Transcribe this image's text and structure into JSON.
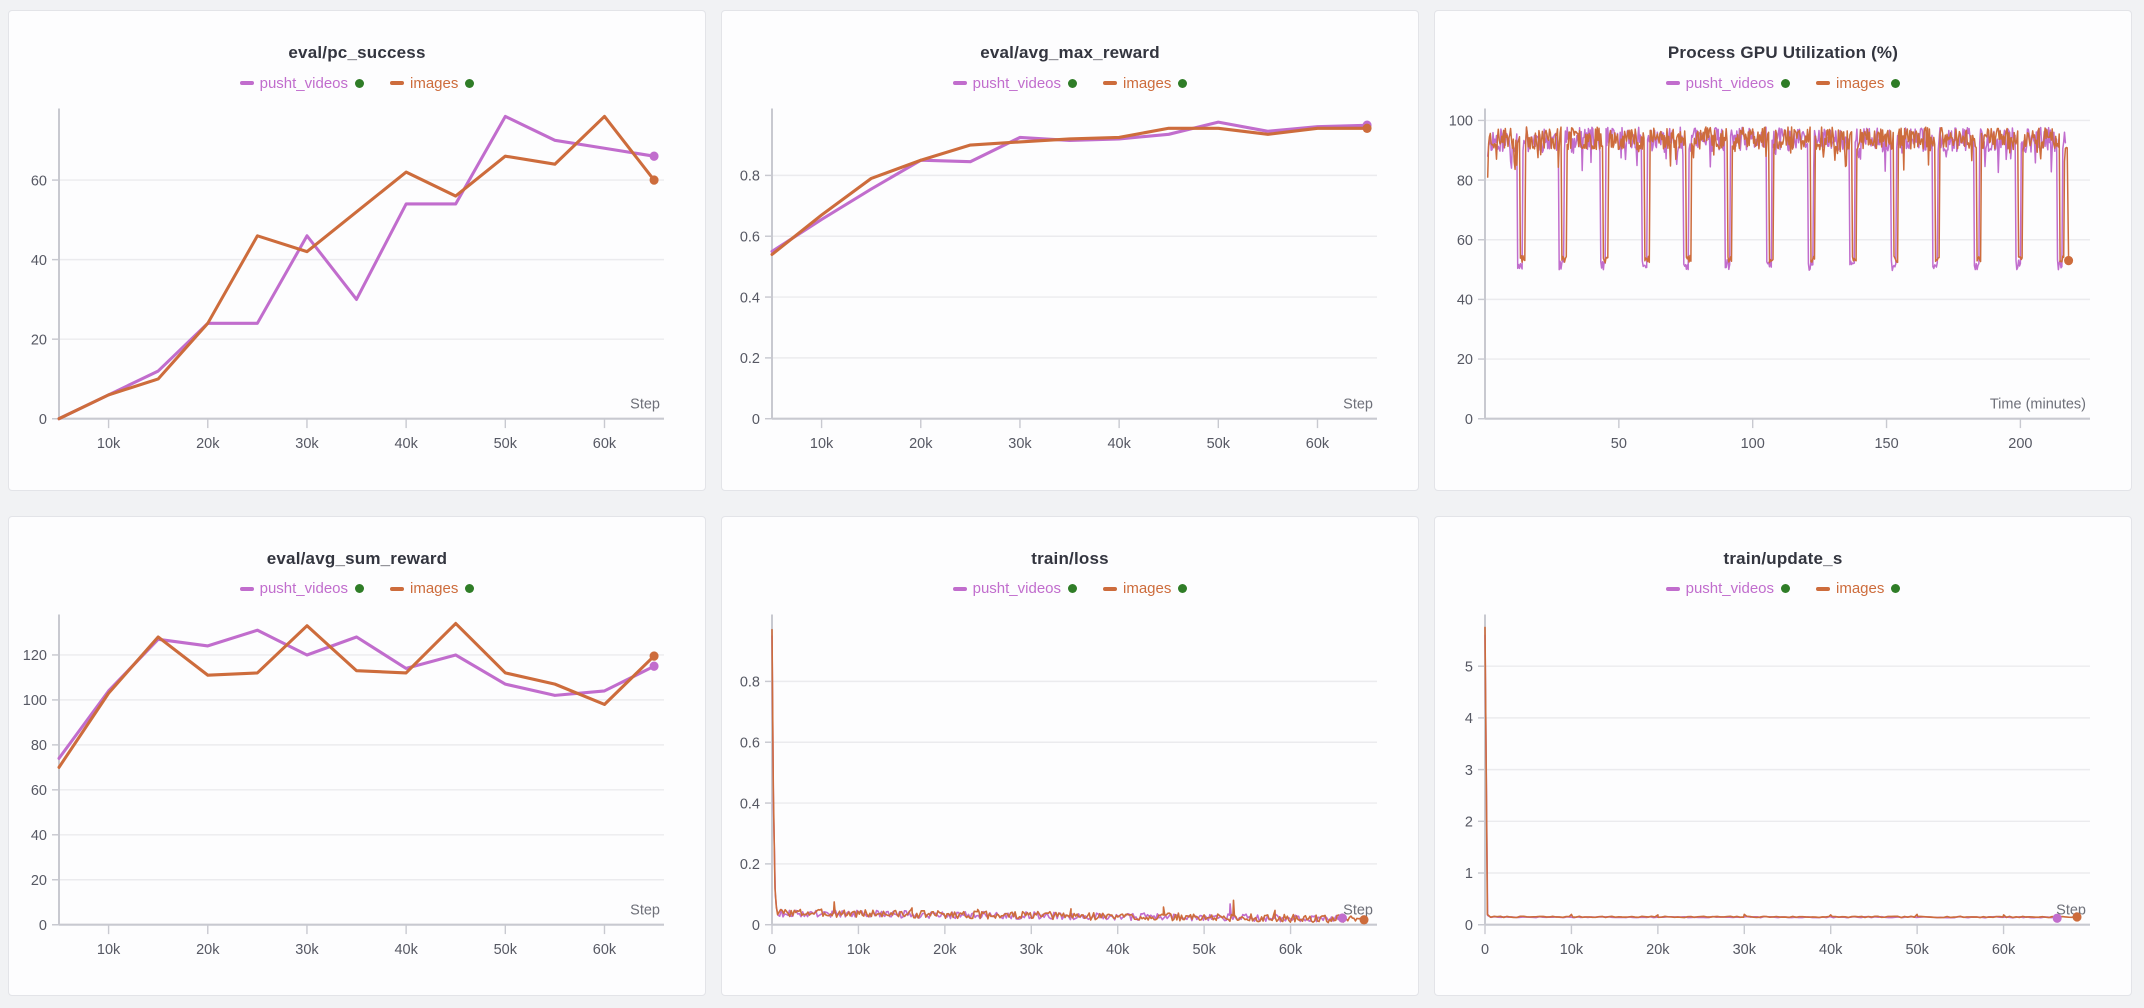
{
  "page": {
    "background": "#f1f2f4",
    "card_background": "#fdfdfe"
  },
  "colors": {
    "pusht_videos": "#c16dcd",
    "images": "#cd6c3c",
    "run_dot": "#2f7d27",
    "title": "#33353f",
    "tick": "#565863",
    "axis": "#c8c9d0",
    "grid": "#ebebee",
    "axis_label": "#6e7079"
  },
  "chart_data": [
    {
      "id": "eval-pc-success",
      "type": "line",
      "title": "eval/pc_success",
      "x_label": "Step",
      "x_range": [
        5000,
        66000
      ],
      "y_range": [
        0,
        78
      ],
      "x_ticks": [
        {
          "v": 10000,
          "label": "10k"
        },
        {
          "v": 20000,
          "label": "20k"
        },
        {
          "v": 30000,
          "label": "30k"
        },
        {
          "v": 40000,
          "label": "40k"
        },
        {
          "v": 50000,
          "label": "50k"
        },
        {
          "v": 60000,
          "label": "60k"
        }
      ],
      "y_ticks": [
        {
          "v": 0,
          "label": "0"
        },
        {
          "v": 20,
          "label": "20"
        },
        {
          "v": 40,
          "label": "40"
        },
        {
          "v": 60,
          "label": "60"
        }
      ],
      "series": [
        {
          "name": "pusht_videos",
          "color_key": "pusht_videos",
          "width": 3,
          "points": [
            [
              5000,
              0
            ],
            [
              10000,
              6
            ],
            [
              15000,
              12
            ],
            [
              20000,
              24
            ],
            [
              25000,
              24
            ],
            [
              30000,
              46
            ],
            [
              35000,
              30
            ],
            [
              40000,
              54
            ],
            [
              45000,
              54
            ],
            [
              50000,
              76
            ],
            [
              55000,
              70
            ],
            [
              60000,
              68
            ],
            [
              65000,
              66
            ]
          ],
          "end_dot": [
            65000,
            66
          ]
        },
        {
          "name": "images",
          "color_key": "images",
          "width": 3,
          "points": [
            [
              5000,
              0
            ],
            [
              10000,
              6
            ],
            [
              15000,
              10
            ],
            [
              20000,
              24
            ],
            [
              25000,
              46
            ],
            [
              30000,
              42
            ],
            [
              35000,
              52
            ],
            [
              40000,
              62
            ],
            [
              45000,
              56
            ],
            [
              50000,
              66
            ],
            [
              55000,
              64
            ],
            [
              60000,
              76
            ],
            [
              65000,
              60
            ]
          ],
          "end_dot": [
            65000,
            60
          ]
        }
      ]
    },
    {
      "id": "eval-avg-max-reward",
      "type": "line",
      "title": "eval/avg_max_reward",
      "x_label": "Step",
      "x_range": [
        5000,
        66000
      ],
      "y_range": [
        0,
        1.02
      ],
      "x_ticks": [
        {
          "v": 10000,
          "label": "10k"
        },
        {
          "v": 20000,
          "label": "20k"
        },
        {
          "v": 30000,
          "label": "30k"
        },
        {
          "v": 40000,
          "label": "40k"
        },
        {
          "v": 50000,
          "label": "50k"
        },
        {
          "v": 60000,
          "label": "60k"
        }
      ],
      "y_ticks": [
        {
          "v": 0,
          "label": "0"
        },
        {
          "v": 0.2,
          "label": "0.2"
        },
        {
          "v": 0.4,
          "label": "0.4"
        },
        {
          "v": 0.6,
          "label": "0.6"
        },
        {
          "v": 0.8,
          "label": "0.8"
        }
      ],
      "series": [
        {
          "name": "pusht_videos",
          "color_key": "pusht_videos",
          "width": 3,
          "points": [
            [
              5000,
              0.55
            ],
            [
              10000,
              0.655
            ],
            [
              15000,
              0.755
            ],
            [
              20000,
              0.85
            ],
            [
              25000,
              0.845
            ],
            [
              30000,
              0.925
            ],
            [
              35000,
              0.915
            ],
            [
              40000,
              0.92
            ],
            [
              45000,
              0.935
            ],
            [
              50000,
              0.975
            ],
            [
              55000,
              0.945
            ],
            [
              60000,
              0.96
            ],
            [
              65000,
              0.965
            ]
          ],
          "end_dot": [
            65000,
            0.965
          ]
        },
        {
          "name": "images",
          "color_key": "images",
          "width": 3,
          "points": [
            [
              5000,
              0.54
            ],
            [
              10000,
              0.67
            ],
            [
              15000,
              0.79
            ],
            [
              20000,
              0.85
            ],
            [
              25000,
              0.9
            ],
            [
              30000,
              0.91
            ],
            [
              35000,
              0.92
            ],
            [
              40000,
              0.925
            ],
            [
              45000,
              0.955
            ],
            [
              50000,
              0.955
            ],
            [
              55000,
              0.935
            ],
            [
              60000,
              0.955
            ],
            [
              65000,
              0.955
            ]
          ],
          "end_dot": [
            65000,
            0.955
          ]
        }
      ]
    },
    {
      "id": "process-gpu-utilization",
      "type": "line",
      "title": "Process GPU Utilization (%)",
      "x_label": "Time (minutes)",
      "x_range": [
        0,
        226
      ],
      "y_range": [
        0,
        104
      ],
      "x_ticks": [
        {
          "v": 50,
          "label": "50"
        },
        {
          "v": 100,
          "label": "100"
        },
        {
          "v": 150,
          "label": "150"
        },
        {
          "v": 200,
          "label": "200"
        }
      ],
      "y_ticks": [
        {
          "v": 0,
          "label": "0"
        },
        {
          "v": 20,
          "label": "20"
        },
        {
          "v": 40,
          "label": "40"
        },
        {
          "v": 60,
          "label": "60"
        },
        {
          "v": 80,
          "label": "80"
        },
        {
          "v": 100,
          "label": "100"
        }
      ],
      "series": [
        {
          "name": "pusht_videos",
          "color_key": "pusht_videos",
          "width": 1.5,
          "synth": {
            "type": "gpu",
            "seed": 11,
            "x_start": 1,
            "x_end": 217,
            "step": 0.33,
            "start": 88,
            "base": 93.5,
            "noise": 4.2,
            "max": 100,
            "dip_times": [
              13.2,
              28.7,
              44.2,
              59.7,
              75.2,
              90.7,
              106.2,
              121.7,
              137.2,
              152.7,
              168.2,
              183.7,
              199.2,
              214.7
            ],
            "dip_value": 51.5,
            "dip_noise": 1.8,
            "dip_half_width": 1.0
          },
          "end_dot": null
        },
        {
          "name": "images",
          "color_key": "images",
          "width": 1.5,
          "synth": {
            "type": "gpu",
            "seed": 23,
            "x_start": 1,
            "x_end": 217.5,
            "step": 0.33,
            "start": 81,
            "base": 94,
            "noise": 3.8,
            "max": 100,
            "dip_times": [
              14,
              29.5,
              45,
              60.5,
              76,
              91.5,
              107,
              122.5,
              138,
              153.5,
              169,
              184.5,
              200,
              215.5
            ],
            "dip_value": 53.5,
            "dip_noise": 1.2,
            "dip_half_width": 0.9,
            "suffix": [
              [
                218,
                53
              ]
            ]
          },
          "end_dot": [
            218,
            53
          ]
        }
      ]
    },
    {
      "id": "eval-avg-sum-reward",
      "type": "line",
      "title": "eval/avg_sum_reward",
      "x_label": "Step",
      "x_range": [
        5000,
        66000
      ],
      "y_range": [
        0,
        138
      ],
      "x_ticks": [
        {
          "v": 10000,
          "label": "10k"
        },
        {
          "v": 20000,
          "label": "20k"
        },
        {
          "v": 30000,
          "label": "30k"
        },
        {
          "v": 40000,
          "label": "40k"
        },
        {
          "v": 50000,
          "label": "50k"
        },
        {
          "v": 60000,
          "label": "60k"
        }
      ],
      "y_ticks": [
        {
          "v": 0,
          "label": "0"
        },
        {
          "v": 20,
          "label": "20"
        },
        {
          "v": 40,
          "label": "40"
        },
        {
          "v": 60,
          "label": "60"
        },
        {
          "v": 80,
          "label": "80"
        },
        {
          "v": 100,
          "label": "100"
        },
        {
          "v": 120,
          "label": "120"
        }
      ],
      "series": [
        {
          "name": "pusht_videos",
          "color_key": "pusht_videos",
          "width": 3,
          "points": [
            [
              5000,
              74
            ],
            [
              10000,
              104
            ],
            [
              15000,
              127
            ],
            [
              20000,
              124
            ],
            [
              25000,
              131
            ],
            [
              30000,
              120
            ],
            [
              35000,
              128
            ],
            [
              40000,
              114
            ],
            [
              45000,
              120
            ],
            [
              50000,
              107
            ],
            [
              55000,
              102
            ],
            [
              60000,
              104
            ],
            [
              65000,
              115
            ]
          ],
          "end_dot": [
            65000,
            115
          ]
        },
        {
          "name": "images",
          "color_key": "images",
          "width": 3,
          "points": [
            [
              5000,
              70
            ],
            [
              10000,
              103
            ],
            [
              15000,
              128
            ],
            [
              20000,
              111
            ],
            [
              25000,
              112
            ],
            [
              30000,
              133
            ],
            [
              35000,
              113
            ],
            [
              40000,
              112
            ],
            [
              45000,
              134
            ],
            [
              50000,
              112
            ],
            [
              55000,
              107
            ],
            [
              60000,
              98
            ],
            [
              65000,
              119.5
            ]
          ],
          "end_dot": [
            65000,
            119.5
          ]
        }
      ]
    },
    {
      "id": "train-loss",
      "type": "line",
      "title": "train/loss",
      "x_label": "Step",
      "x_range": [
        0,
        70000
      ],
      "y_range": [
        0,
        1.02
      ],
      "x_ticks": [
        {
          "v": 0,
          "label": "0"
        },
        {
          "v": 10000,
          "label": "10k"
        },
        {
          "v": 20000,
          "label": "20k"
        },
        {
          "v": 30000,
          "label": "30k"
        },
        {
          "v": 40000,
          "label": "40k"
        },
        {
          "v": 50000,
          "label": "50k"
        },
        {
          "v": 60000,
          "label": "60k"
        }
      ],
      "y_ticks": [
        {
          "v": 0,
          "label": "0"
        },
        {
          "v": 0.2,
          "label": "0.2"
        },
        {
          "v": 0.4,
          "label": "0.4"
        },
        {
          "v": 0.6,
          "label": "0.6"
        },
        {
          "v": 0.8,
          "label": "0.8"
        }
      ],
      "series": [
        {
          "name": "pusht_videos",
          "color_key": "pusht_videos",
          "width": 1.6,
          "synth": {
            "type": "decay",
            "seed": 9,
            "prefix": [
              [
                0,
                0.95
              ],
              [
                160,
                0.4
              ],
              [
                380,
                0.1
              ],
              [
                520,
                0.055
              ]
            ],
            "x_start": 700,
            "x_end": 66000,
            "step": 190,
            "base_start": 0.038,
            "base_end": 0.02,
            "noise": 0.012,
            "min_clamp": 0.005,
            "spikes": [
              [
                53000,
                0.068
              ]
            ]
          },
          "end_dot": [
            66000,
            0.022
          ]
        },
        {
          "name": "images",
          "color_key": "images",
          "width": 1.6,
          "synth": {
            "type": "decay",
            "seed": 3,
            "prefix": [
              [
                0,
                0.97
              ],
              [
                150,
                0.45
              ],
              [
                350,
                0.12
              ],
              [
                500,
                0.06
              ]
            ],
            "x_start": 650,
            "x_end": 68500,
            "step": 175,
            "base_start": 0.04,
            "base_end": 0.018,
            "noise": 0.013,
            "min_clamp": 0.005,
            "spikes": [
              [
                7200,
                0.075
              ],
              [
                16200,
                0.055
              ],
              [
                23800,
                0.05
              ],
              [
                34600,
                0.052
              ],
              [
                45300,
                0.058
              ],
              [
                53400,
                0.08
              ],
              [
                58200,
                0.047
              ]
            ]
          },
          "end_dot": [
            68500,
            0.016
          ]
        }
      ]
    },
    {
      "id": "train-update-s",
      "type": "line",
      "title": "train/update_s",
      "x_label": "Step",
      "x_range": [
        0,
        70000
      ],
      "y_range": [
        0,
        6.0
      ],
      "x_ticks": [
        {
          "v": 0,
          "label": "0"
        },
        {
          "v": 10000,
          "label": "10k"
        },
        {
          "v": 20000,
          "label": "20k"
        },
        {
          "v": 30000,
          "label": "30k"
        },
        {
          "v": 40000,
          "label": "40k"
        },
        {
          "v": 50000,
          "label": "50k"
        },
        {
          "v": 60000,
          "label": "60k"
        }
      ],
      "y_ticks": [
        {
          "v": 0,
          "label": "0"
        },
        {
          "v": 1,
          "label": "1"
        },
        {
          "v": 2,
          "label": "2"
        },
        {
          "v": 3,
          "label": "3"
        },
        {
          "v": 4,
          "label": "4"
        },
        {
          "v": 5,
          "label": "5"
        }
      ],
      "series": [
        {
          "name": "pusht_videos",
          "color_key": "pusht_videos",
          "width": 1.6,
          "synth": {
            "type": "decay",
            "seed": 17,
            "prefix": [
              [
                0,
                5.6
              ],
              [
                300,
                0.18
              ]
            ],
            "x_start": 700,
            "x_end": 66200,
            "step": 400,
            "base_start": 0.148,
            "base_end": 0.145,
            "noise": 0.01,
            "min_clamp": 0.11,
            "spikes": []
          },
          "end_dot": [
            66200,
            0.125
          ]
        },
        {
          "name": "images",
          "color_key": "images",
          "width": 1.6,
          "synth": {
            "type": "decay",
            "seed": 7,
            "prefix": [
              [
                0,
                5.75
              ],
              [
                280,
                0.2
              ]
            ],
            "x_start": 650,
            "x_end": 68500,
            "step": 380,
            "base_start": 0.152,
            "base_end": 0.15,
            "noise": 0.012,
            "min_clamp": 0.12,
            "spikes": [
              [
                10000,
                0.2
              ],
              [
                20000,
                0.19
              ],
              [
                30000,
                0.2
              ],
              [
                40000,
                0.19
              ],
              [
                50000,
                0.2
              ],
              [
                60000,
                0.19
              ]
            ]
          },
          "end_dot": [
            68500,
            0.15
          ]
        }
      ]
    }
  ]
}
